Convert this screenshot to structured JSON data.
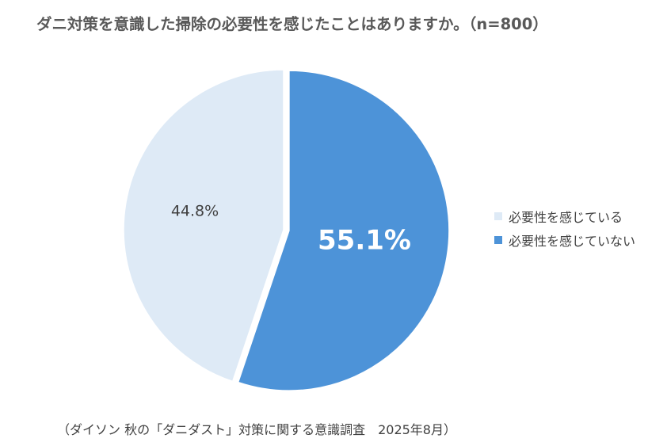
{
  "title": "ダニ対策を意識した掃除の必要性を感じたことはありますか。（n=800）",
  "source": "（ダイソン 秋の「ダニダスト」対策に関する意識調査　2025年8月）",
  "chart_data": {
    "type": "pie",
    "title": "ダニ対策を意識した掃除の必要性を感じたことはありますか。（n=800）",
    "start": "12 o'clock, clockwise",
    "legend_position": "right",
    "slices": [
      {
        "label": "必要性を感じていない",
        "value": 55.1,
        "display": "55.1%",
        "color": "#4d93d8",
        "label_color": "#ffffff",
        "exploded": true
      },
      {
        "label": "必要性を感じている",
        "value": 44.8,
        "display": "44.8%",
        "color": "#deeaf6",
        "label_color": "#404040",
        "exploded": false
      }
    ],
    "legend": [
      {
        "label": "必要性を感じている",
        "color": "#deeaf6"
      },
      {
        "label": "必要性を感じていない",
        "color": "#4d93d8"
      }
    ]
  }
}
